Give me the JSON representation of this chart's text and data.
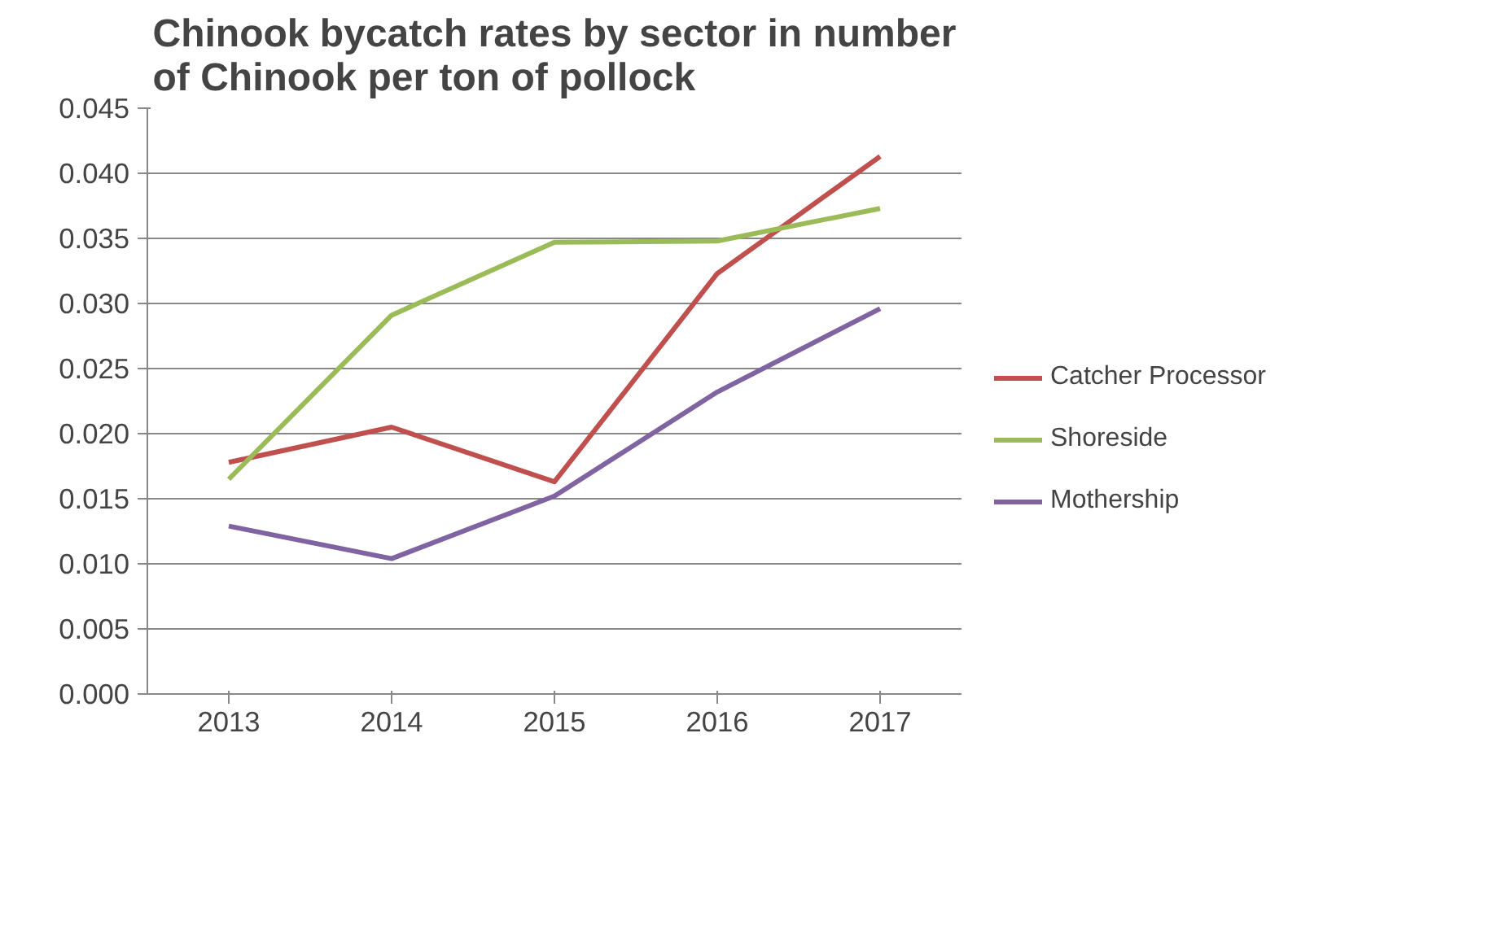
{
  "chart_data": {
    "type": "line",
    "title": "Chinook bycatch rates by sector in number\nof Chinook per ton of pollock",
    "categories": [
      "2013",
      "2014",
      "2015",
      "2016",
      "2017"
    ],
    "series": [
      {
        "name": "Catcher Processor",
        "color": "#c0504d",
        "values": [
          0.0178,
          0.0205,
          0.0163,
          0.0323,
          0.0413
        ]
      },
      {
        "name": "Shoreside",
        "color": "#9bbb59",
        "values": [
          0.0165,
          0.0291,
          0.0347,
          0.0348,
          0.0373
        ]
      },
      {
        "name": "Mothership",
        "color": "#8064a2",
        "values": [
          0.0129,
          0.0104,
          0.0152,
          0.0232,
          0.0296
        ]
      }
    ],
    "ylim": [
      0,
      0.045
    ],
    "yticks": [
      {
        "value": 0,
        "label": "0.000"
      },
      {
        "value": 0.005,
        "label": "0.005"
      },
      {
        "value": 0.01,
        "label": "0.010"
      },
      {
        "value": 0.015,
        "label": "0.015"
      },
      {
        "value": 0.02,
        "label": "0.020"
      },
      {
        "value": 0.025,
        "label": "0.025"
      },
      {
        "value": 0.03,
        "label": "0.030"
      },
      {
        "value": 0.035,
        "label": "0.035"
      },
      {
        "value": 0.04,
        "label": "0.040"
      },
      {
        "value": 0.045,
        "label": "0.045"
      }
    ],
    "grid": "y",
    "legend": "right",
    "marker": "none",
    "line_style": "solid"
  }
}
